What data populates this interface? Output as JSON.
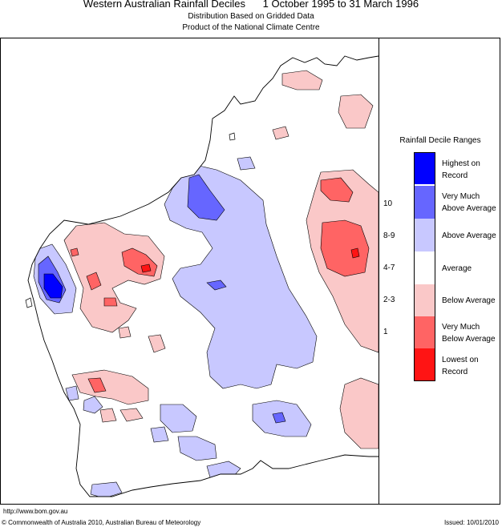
{
  "header": {
    "title": "Western Australian Rainfall Deciles      1 October 1995 to 31 March 1996",
    "subtitle1": "Distribution Based on Gridded Data",
    "subtitle2": "Product of the National Climate Centre"
  },
  "legend": {
    "title": "Rainfall Decile Ranges",
    "items": [
      {
        "label": "Highest on Record",
        "decile": "",
        "color": "#0000ff"
      },
      {
        "label": "Very Much Above Average",
        "decile": "10",
        "color": "#6666ff"
      },
      {
        "label": "Above Average",
        "decile": "8-9",
        "color": "#c8c8ff"
      },
      {
        "label": "Average",
        "decile": "4-7",
        "color": "#ffffff"
      },
      {
        "label": "Below Average",
        "decile": "2-3",
        "color": "#fac8c8"
      },
      {
        "label": "Very Much Below Average",
        "decile": "1",
        "color": "#ff6464"
      },
      {
        "label": "Lowest on Record",
        "decile": "",
        "color": "#ff1414"
      }
    ]
  },
  "footer": {
    "url": "http://www.bom.gov.au",
    "copyright": "© Commonwealth of Australia 2010, Australian Bureau of Meteorology",
    "issued": "Issued: 10/01/2010"
  }
}
